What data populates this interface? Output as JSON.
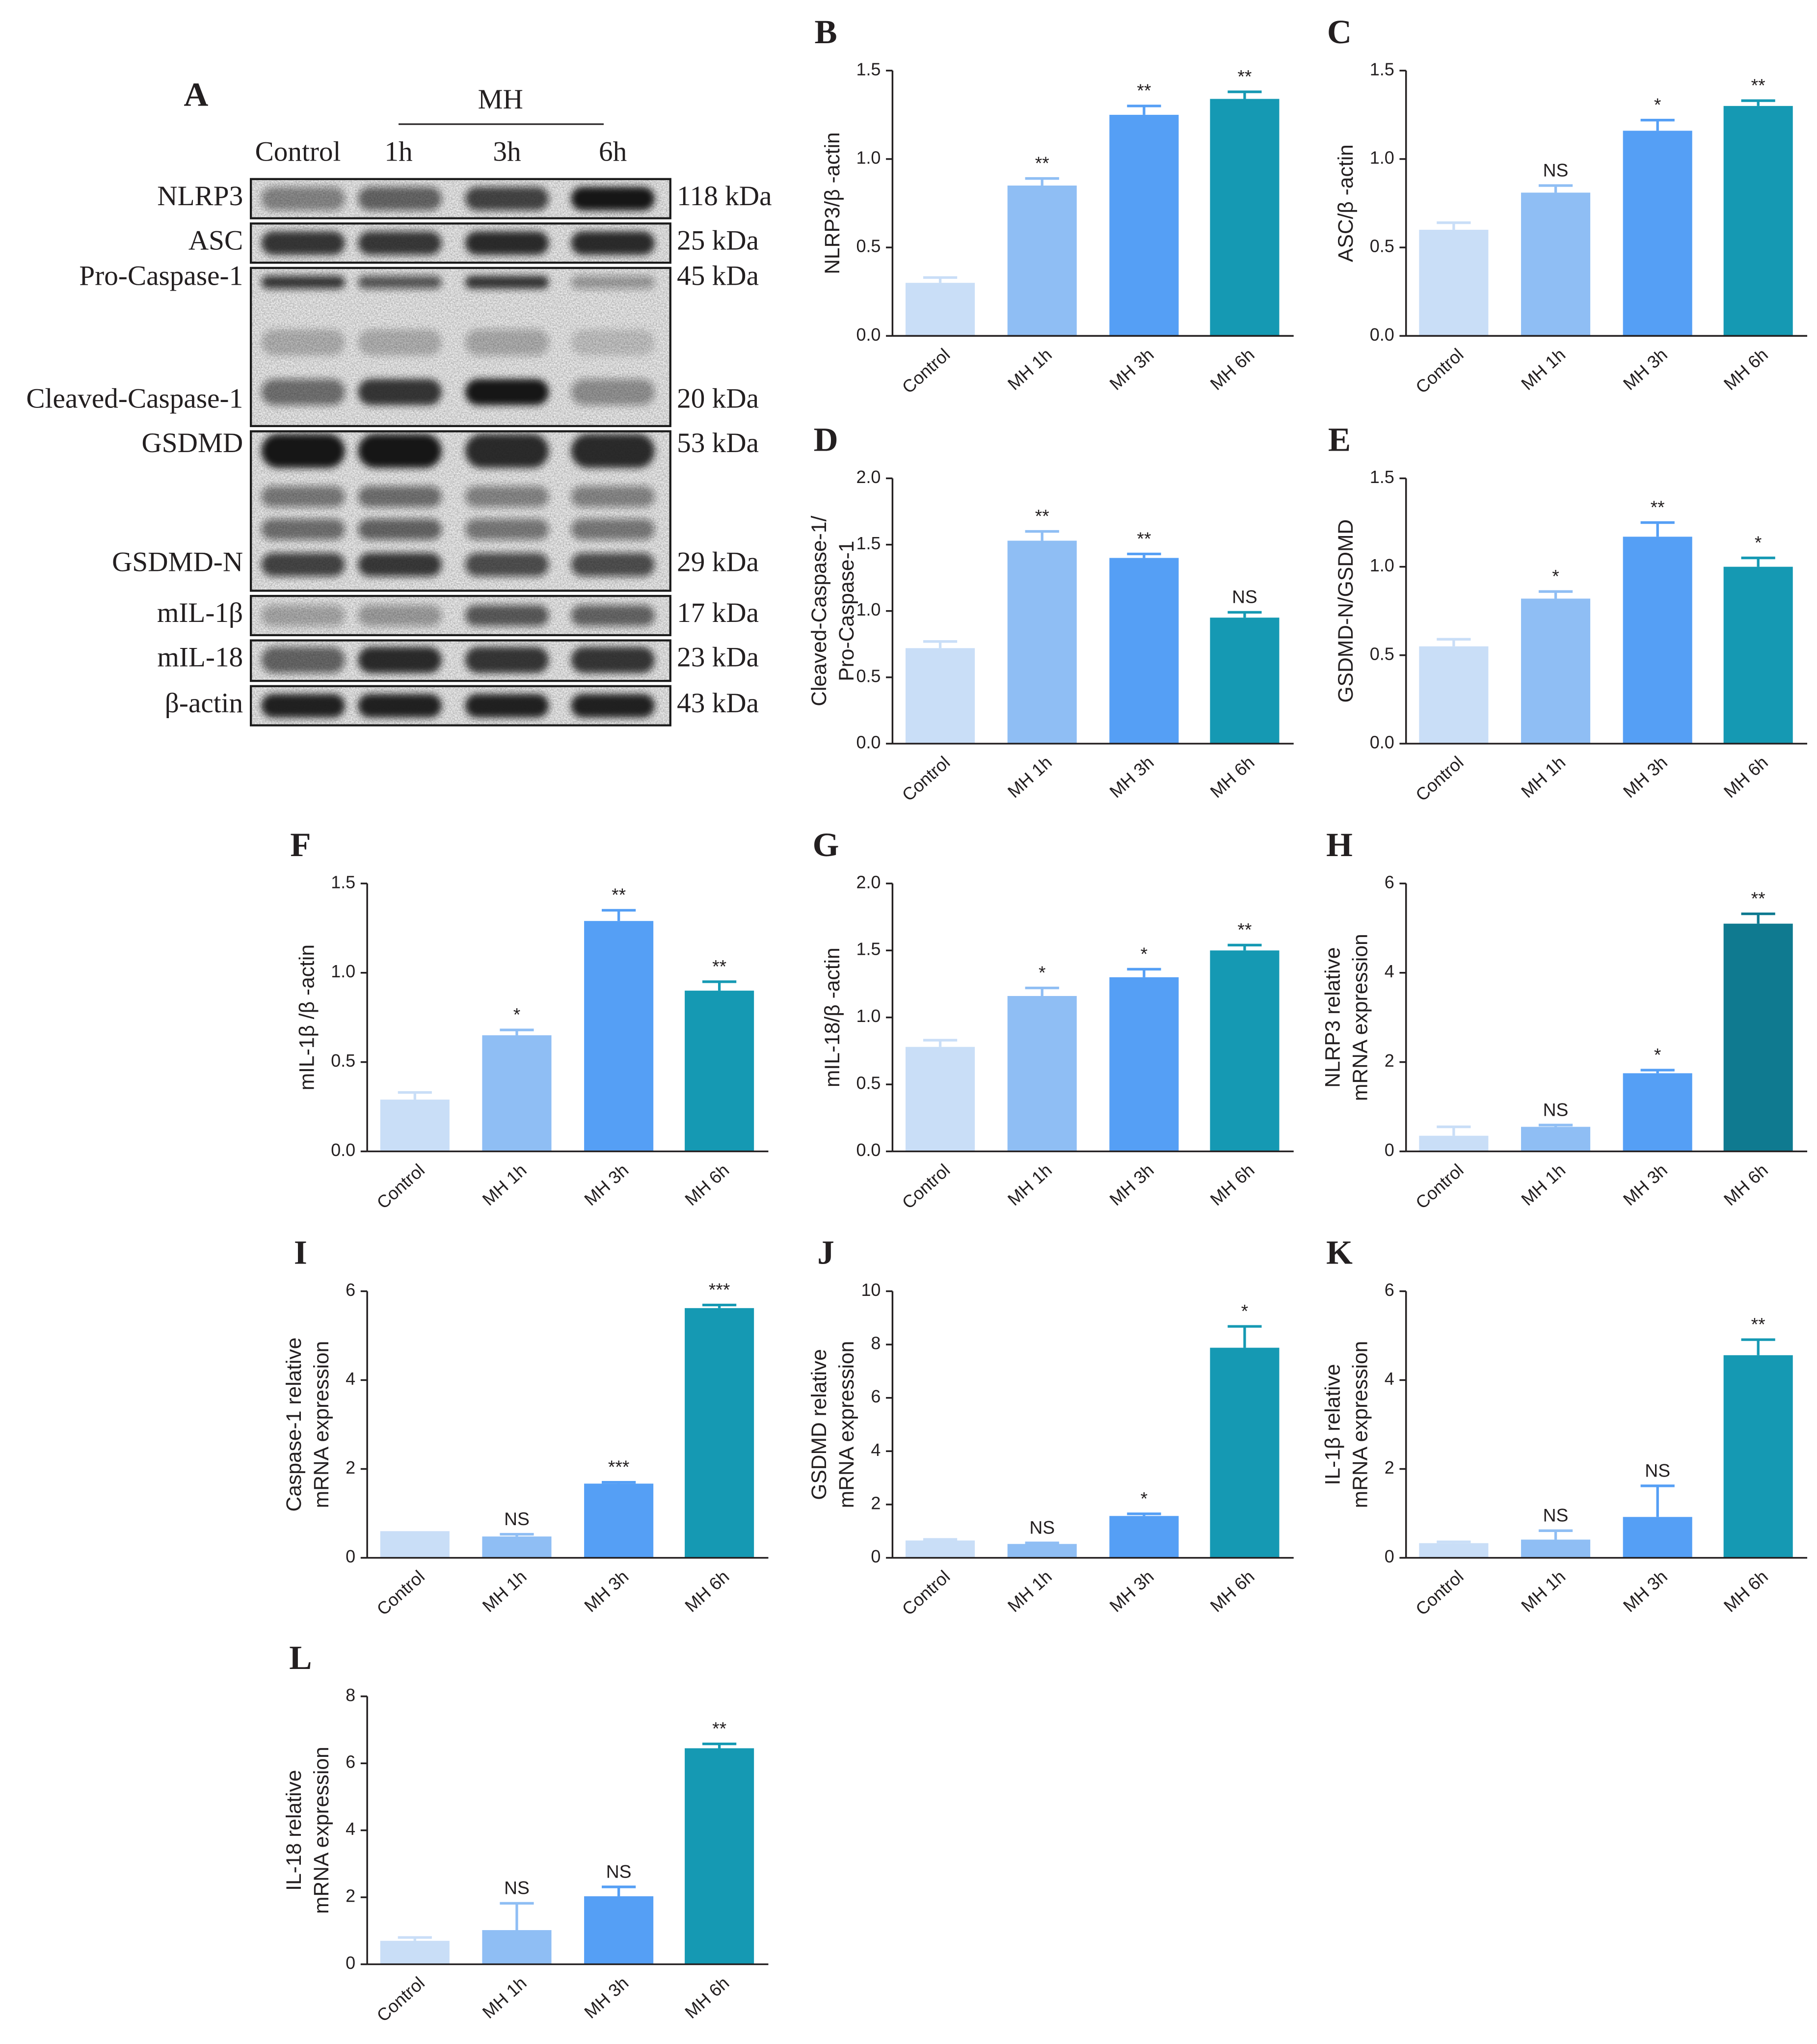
{
  "colors": {
    "bars": [
      "#C9DEF7",
      "#8FBEF4",
      "#559FF5",
      "#1599B3"
    ],
    "axis": "#231F20",
    "band": "#141414",
    "blot_background": "#ECECEC"
  },
  "blot": {
    "panel": "A",
    "group_label": "MH",
    "lane_labels": [
      "Control",
      "1h",
      "3h",
      "6h"
    ],
    "boxes": [
      {
        "bands": [
          {
            "label": "NLRP3",
            "kda": "118 kDa",
            "intensity": [
              0.45,
              0.6,
              0.75,
              1.0
            ]
          }
        ]
      },
      {
        "bands": [
          {
            "label": "ASC",
            "kda": "25 kDa",
            "intensity": [
              0.85,
              0.8,
              0.9,
              0.9
            ]
          }
        ]
      },
      {
        "bands": [
          {
            "label": "Pro-Caspase-1",
            "kda": "45 kDa",
            "intensity": [
              0.8,
              0.65,
              0.85,
              0.35
            ]
          },
          {
            "label": null,
            "kda": null,
            "intensity": [
              0.22,
              0.22,
              0.28,
              0.15
            ]
          },
          {
            "label": "Cleaved-Caspase-1",
            "kda": "20 kDa",
            "intensity": [
              0.55,
              0.85,
              1.0,
              0.4
            ]
          }
        ]
      },
      {
        "bands": [
          {
            "label": "GSDMD",
            "kda": "53 kDa",
            "intensity": [
              1.0,
              1.0,
              0.9,
              0.9
            ]
          },
          {
            "label": null,
            "kda": null,
            "intensity": [
              0.5,
              0.55,
              0.45,
              0.45
            ]
          },
          {
            "label": null,
            "kda": null,
            "intensity": [
              0.55,
              0.6,
              0.5,
              0.5
            ]
          },
          {
            "label": "GSDMD-N",
            "kda": "29 kDa",
            "intensity": [
              0.75,
              0.8,
              0.7,
              0.7
            ]
          }
        ]
      },
      {
        "bands": [
          {
            "label": "mIL-1β",
            "kda": "17 kDa",
            "intensity": [
              0.3,
              0.35,
              0.65,
              0.6
            ]
          }
        ]
      },
      {
        "bands": [
          {
            "label": "mIL-18",
            "kda": "23 kDa",
            "intensity": [
              0.6,
              0.9,
              0.85,
              0.85
            ]
          }
        ]
      },
      {
        "bands": [
          {
            "label": "β-actin",
            "kda": "43 kDa",
            "intensity": [
              0.95,
              0.95,
              0.95,
              0.95
            ]
          }
        ]
      }
    ]
  },
  "chart_data": [
    {
      "panel": "B",
      "type": "bar",
      "categories": [
        "Control",
        "MH 1h",
        "MH 3h",
        "MH 6h"
      ],
      "values": [
        0.3,
        0.85,
        1.25,
        1.34
      ],
      "errors": [
        0.03,
        0.04,
        0.05,
        0.04
      ],
      "significance": [
        null,
        "**",
        "**",
        "**"
      ],
      "ylabel": [
        "NLRP3/β -actin"
      ],
      "ylim": [
        0,
        1.5
      ],
      "yticks": [
        "0.0",
        "0.5",
        "1.0",
        "1.5"
      ]
    },
    {
      "panel": "C",
      "type": "bar",
      "categories": [
        "Control",
        "MH 1h",
        "MH 3h",
        "MH 6h"
      ],
      "values": [
        0.6,
        0.81,
        1.16,
        1.3
      ],
      "errors": [
        0.04,
        0.04,
        0.06,
        0.03
      ],
      "significance": [
        null,
        "NS",
        "*",
        "**"
      ],
      "ylabel": [
        "ASC/β -actin"
      ],
      "ylim": [
        0,
        1.5
      ],
      "yticks": [
        "0.0",
        "0.5",
        "1.0",
        "1.5"
      ]
    },
    {
      "panel": "D",
      "type": "bar",
      "categories": [
        "Control",
        "MH 1h",
        "MH 3h",
        "MH 6h"
      ],
      "values": [
        0.72,
        1.53,
        1.4,
        0.95
      ],
      "errors": [
        0.05,
        0.07,
        0.03,
        0.04
      ],
      "significance": [
        null,
        "**",
        "**",
        "NS"
      ],
      "ylabel": [
        "Cleaved-Caspase-1/",
        "Pro-Caspase-1"
      ],
      "ylim": [
        0,
        2.0
      ],
      "yticks": [
        "0.0",
        "0.5",
        "1.0",
        "1.5",
        "2.0"
      ]
    },
    {
      "panel": "E",
      "type": "bar",
      "categories": [
        "Control",
        "MH 1h",
        "MH 3h",
        "MH 6h"
      ],
      "values": [
        0.55,
        0.82,
        1.17,
        1.0
      ],
      "errors": [
        0.04,
        0.04,
        0.08,
        0.05
      ],
      "significance": [
        null,
        "*",
        "**",
        "*"
      ],
      "ylabel": [
        "GSDMD-N/GSDMD"
      ],
      "ylim": [
        0,
        1.5
      ],
      "yticks": [
        "0.0",
        "0.5",
        "1.0",
        "1.5"
      ]
    },
    {
      "panel": "F",
      "type": "bar",
      "categories": [
        "Control",
        "MH 1h",
        "MH 3h",
        "MH 6h"
      ],
      "values": [
        0.29,
        0.65,
        1.29,
        0.9
      ],
      "errors": [
        0.04,
        0.03,
        0.06,
        0.05
      ],
      "significance": [
        null,
        "*",
        "**",
        "**"
      ],
      "ylabel": [
        "mIL-1β /β -actin"
      ],
      "ylim": [
        0,
        1.5
      ],
      "yticks": [
        "0.0",
        "0.5",
        "1.0",
        "1.5"
      ]
    },
    {
      "panel": "G",
      "type": "bar",
      "categories": [
        "Control",
        "MH 1h",
        "MH 3h",
        "MH 6h"
      ],
      "values": [
        0.78,
        1.16,
        1.3,
        1.5
      ],
      "errors": [
        0.05,
        0.06,
        0.06,
        0.04
      ],
      "significance": [
        null,
        "*",
        "*",
        "**"
      ],
      "ylabel": [
        "mIL-18/β -actin"
      ],
      "ylim": [
        0,
        2.0
      ],
      "yticks": [
        "0.0",
        "0.5",
        "1.0",
        "1.5",
        "2.0"
      ]
    },
    {
      "panel": "H",
      "type": "bar",
      "categories": [
        "Control",
        "MH 1h",
        "MH 3h",
        "MH 6h"
      ],
      "values": [
        0.35,
        0.55,
        1.75,
        5.1
      ],
      "errors": [
        0.2,
        0.04,
        0.07,
        0.22
      ],
      "significance": [
        null,
        "NS",
        "*",
        "**"
      ],
      "ylabel": [
        "NLRP3 relative",
        "mRNA expression"
      ],
      "ylim": [
        0,
        6
      ],
      "yticks": [
        "0",
        "2",
        "4",
        "6"
      ],
      "bar_colors": [
        "#C9DEF7",
        "#8FBEF4",
        "#559FF5",
        "#0F7A90"
      ]
    },
    {
      "panel": "I",
      "type": "bar",
      "categories": [
        "Control",
        "MH 1h",
        "MH 3h",
        "MH 6h"
      ],
      "values": [
        0.6,
        0.48,
        1.67,
        5.62
      ],
      "errors": [
        0.0,
        0.05,
        0.03,
        0.07
      ],
      "significance": [
        null,
        "NS",
        "***",
        "***"
      ],
      "ylabel": [
        "Caspase-1 relative",
        "mRNA expression"
      ],
      "ylim": [
        0,
        6
      ],
      "yticks": [
        "0",
        "2",
        "4",
        "6"
      ]
    },
    {
      "panel": "J",
      "type": "bar",
      "categories": [
        "Control",
        "MH 1h",
        "MH 3h",
        "MH 6h"
      ],
      "values": [
        0.65,
        0.52,
        1.57,
        7.88
      ],
      "errors": [
        0.04,
        0.04,
        0.08,
        0.8
      ],
      "significance": [
        null,
        "NS",
        "*",
        "*"
      ],
      "ylabel": [
        "GSDMD relative",
        "mRNA expression"
      ],
      "ylim": [
        0,
        10
      ],
      "yticks": [
        "0",
        "2",
        "4",
        "6",
        "8",
        "10"
      ]
    },
    {
      "panel": "K",
      "type": "bar",
      "categories": [
        "Control",
        "MH 1h",
        "MH 3h",
        "MH 6h"
      ],
      "values": [
        0.33,
        0.41,
        0.92,
        4.56
      ],
      "errors": [
        0.03,
        0.2,
        0.7,
        0.35
      ],
      "significance": [
        null,
        "NS",
        "NS",
        "**"
      ],
      "ylabel": [
        "IL-1β relative",
        "mRNA expression"
      ],
      "ylim": [
        0,
        6
      ],
      "yticks": [
        "0",
        "2",
        "4",
        "6"
      ]
    },
    {
      "panel": "L",
      "type": "bar",
      "categories": [
        "Control",
        "MH 1h",
        "MH 3h",
        "MH 6h"
      ],
      "values": [
        0.7,
        1.02,
        2.03,
        6.45
      ],
      "errors": [
        0.1,
        0.8,
        0.28,
        0.13
      ],
      "significance": [
        null,
        "NS",
        "NS",
        "**"
      ],
      "ylabel": [
        "IL-18 relative",
        "mRNA expression"
      ],
      "ylim": [
        0,
        8
      ],
      "yticks": [
        "0",
        "2",
        "4",
        "6",
        "8"
      ]
    }
  ]
}
